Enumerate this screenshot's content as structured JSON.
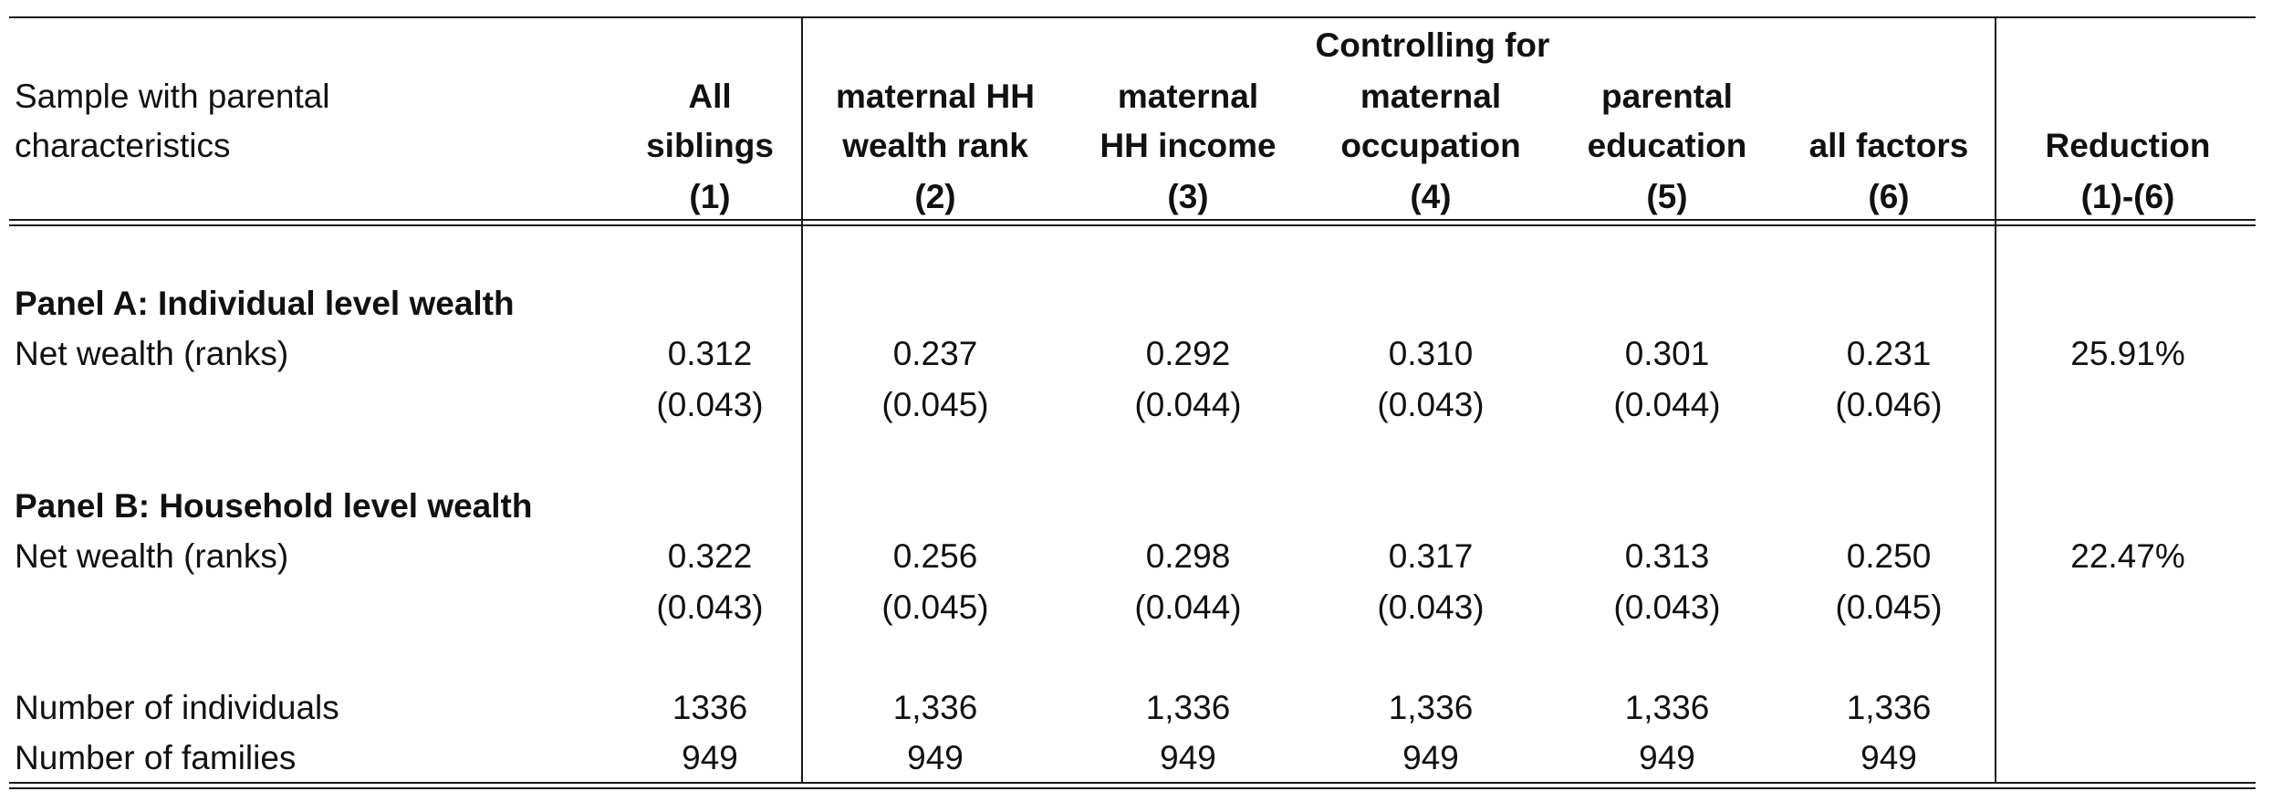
{
  "header": {
    "controlling_for": "Controlling for",
    "sample_label_line1": "Sample with parental",
    "sample_label_line2": "characteristics",
    "columns": [
      {
        "line1": "",
        "line2": "All",
        "line3": "siblings",
        "num": "(1)"
      },
      {
        "line1": "",
        "line2": "maternal HH",
        "line3": "wealth rank",
        "num": "(2)"
      },
      {
        "line1": "",
        "line2": "maternal",
        "line3": "HH income",
        "num": "(3)"
      },
      {
        "line1": "",
        "line2": "maternal",
        "line3": "occupation",
        "num": "(4)"
      },
      {
        "line1": "",
        "line2": "parental",
        "line3": "education",
        "num": "(5)"
      },
      {
        "line1": "",
        "line2": "",
        "line3": "all factors",
        "num": "(6)"
      },
      {
        "line1": "",
        "line2": "",
        "line3": "Reduction",
        "num": "(1)-(6)"
      }
    ]
  },
  "panel_a": {
    "title": "Panel A: Individual level wealth",
    "row_label": "Net wealth (ranks)",
    "coefs": [
      "0.312",
      "0.237",
      "0.292",
      "0.310",
      "0.301",
      "0.231",
      "25.91%"
    ],
    "ses": [
      "(0.043)",
      "(0.045)",
      "(0.044)",
      "(0.043)",
      "(0.044)",
      "(0.046)",
      ""
    ]
  },
  "panel_b": {
    "title": "Panel B: Household level wealth",
    "row_label": "Net wealth (ranks)",
    "coefs": [
      "0.322",
      "0.256",
      "0.298",
      "0.317",
      "0.313",
      "0.250",
      "22.47%"
    ],
    "ses": [
      "(0.043)",
      "(0.045)",
      "(0.044)",
      "(0.043)",
      "(0.043)",
      "(0.045)",
      ""
    ]
  },
  "footer": {
    "individuals_label": "Number of individuals",
    "individuals": [
      "1336",
      "1,336",
      "1,336",
      "1,336",
      "1,336",
      "1,336",
      ""
    ],
    "families_label": "Number of families",
    "families": [
      "949",
      "949",
      "949",
      "949",
      "949",
      "949",
      ""
    ]
  }
}
